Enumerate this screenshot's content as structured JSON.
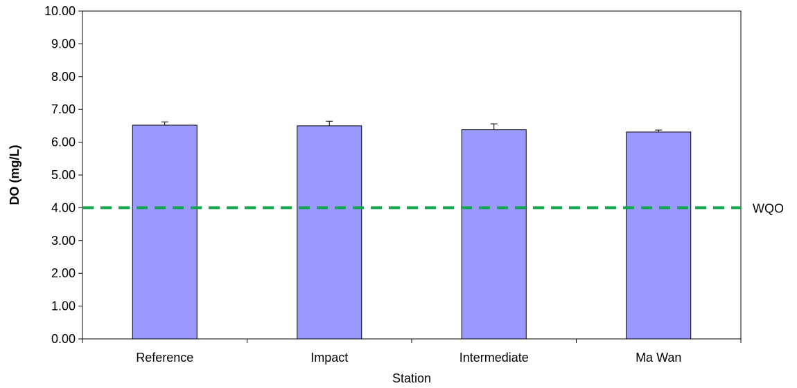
{
  "chart_data": {
    "type": "bar",
    "categories": [
      "Reference",
      "Impact",
      "Intermediate",
      "Ma Wan"
    ],
    "values": [
      6.52,
      6.5,
      6.38,
      6.31
    ],
    "error_upper": [
      0.1,
      0.14,
      0.18,
      0.06
    ],
    "xlabel": "Station",
    "ylabel": "DO (mg/L)",
    "ylim": [
      0,
      10
    ],
    "yticks": [
      "0.00",
      "1.00",
      "2.00",
      "3.00",
      "4.00",
      "5.00",
      "6.00",
      "7.00",
      "8.00",
      "9.00",
      "10.00"
    ],
    "reference_line": {
      "value": 4.0,
      "label": "WQO",
      "color": "#12A94E",
      "style": "dashed"
    },
    "bar_color": "#9999FF",
    "bar_edge_color": "#000000",
    "grid": false,
    "legend": false
  }
}
